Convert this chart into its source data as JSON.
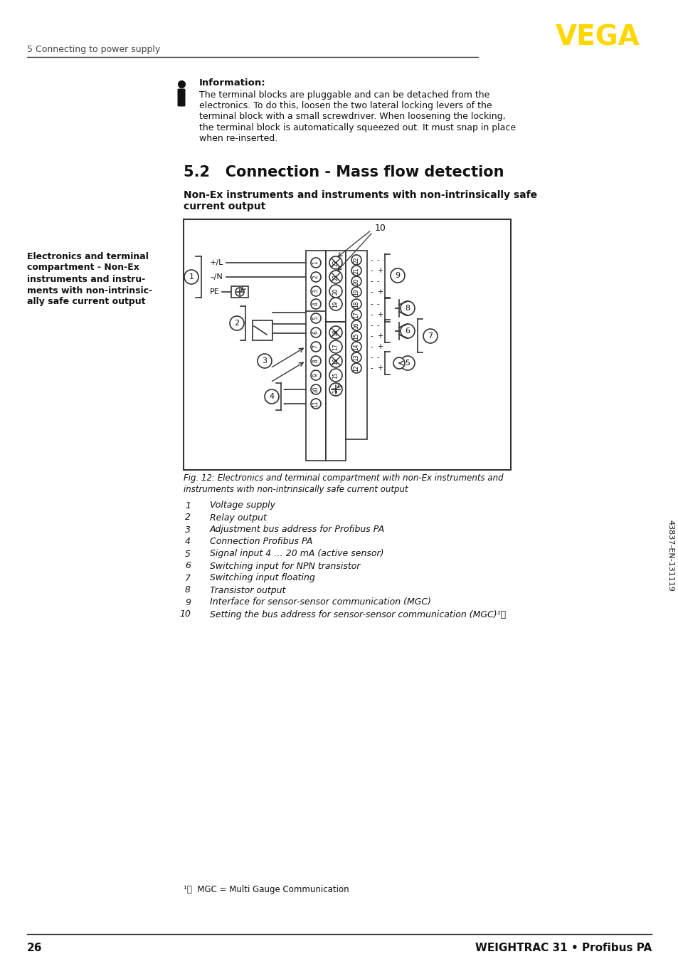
{
  "page_number": "26",
  "footer_right": "WEIGHTRAC 31 • Profibus PA",
  "header_left": "5 Connecting to power supply",
  "vega_color": "#FFD700",
  "section_header": "5.2   Connection - Mass flow detection",
  "sub_line1": "Non-Ex instruments and instruments with non-intrinsically safe",
  "sub_line2": "current output",
  "left_label_lines": [
    "Electronics and terminal",
    "compartment - Non-Ex",
    "instruments and instru-",
    "ments with non-intrinsic-",
    "ally safe current output"
  ],
  "info_title": "Information:",
  "info_lines": [
    "The terminal blocks are pluggable and can be detached from the",
    "electronics. To do this, loosen the two lateral locking levers of the",
    "terminal block with a small screwdriver. When loosening the locking,",
    "the terminal block is automatically squeezed out. It must snap in place",
    "when re-inserted."
  ],
  "fig_caption_lines": [
    "Fig. 12: Electronics and terminal compartment with non-Ex instruments and",
    "instruments with non-intrinsically safe current output"
  ],
  "legend_items": [
    [
      "1",
      "Voltage supply"
    ],
    [
      "2",
      "Relay output"
    ],
    [
      "3",
      "Adjustment bus address for Profibus PA"
    ],
    [
      "4",
      "Connection Profibus PA"
    ],
    [
      "5",
      "Signal input 4 … 20 mA (active sensor)"
    ],
    [
      "6",
      "Switching input for NPN transistor"
    ],
    [
      "7",
      "Switching input floating"
    ],
    [
      "8",
      "Transistor output"
    ],
    [
      "9",
      "Interface for sensor-sensor communication (MGC)"
    ],
    [
      "10",
      "Setting the bus address for sensor-sensor communication (MGC)¹⧩"
    ]
  ],
  "footnote": "¹⧩  MGC = Multi Gauge Communication",
  "sidebar_text": "43837-EN-131119",
  "bg": "#FFFFFF"
}
